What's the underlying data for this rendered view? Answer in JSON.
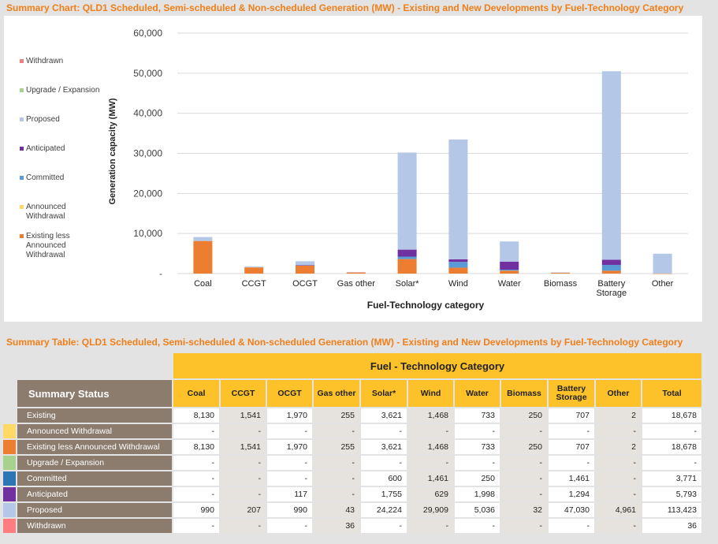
{
  "chart_title": "Summary Chart:  QLD1 Scheduled, Semi-scheduled & Non-scheduled Generation (MW) - Existing and New Developments by Fuel-Technology Category",
  "table_title": "Summary Table:  QLD1 Scheduled, Semi-scheduled & Non-scheduled Generation (MW) - Existing and New Developments by Fuel-Technology Category",
  "colors": {
    "title": "#f07f19",
    "withdrawn": "#f08080",
    "upgrade": "#a9d18e",
    "proposed": "#b4c7e7",
    "anticipated": "#7030a0",
    "committed": "#5b9bd5",
    "announced": "#ffd966",
    "existing": "#ed7d31"
  },
  "chart_data": {
    "type": "bar",
    "stacked": true,
    "title": "Summary Chart:  QLD1 Scheduled, Semi-scheduled & Non-scheduled Generation (MW) - Existing and New Developments by Fuel-Technology Category",
    "xlabel": "Fuel-Technology  category",
    "ylabel": "Generation capacity (MW)",
    "ylim": [
      0,
      60000
    ],
    "yticks": [
      "-",
      "10,000",
      "20,000",
      "30,000",
      "40,000",
      "50,000",
      "60,000"
    ],
    "categories": [
      "Coal",
      "CCGT",
      "OCGT",
      "Gas other",
      "Solar*",
      "Wind",
      "Water",
      "Biomass",
      "Battery Storage",
      "Other"
    ],
    "legend": [
      "Withdrawn",
      "Upgrade / Expansion",
      "Proposed",
      "Anticipated",
      "Committed",
      "Announced Withdrawal",
      "Existing less Announced Withdrawal"
    ],
    "series": [
      {
        "name": "Existing less Announced Withdrawal",
        "key": "existing",
        "values": [
          8130,
          1541,
          1970,
          255,
          3621,
          1468,
          733,
          250,
          707,
          2
        ]
      },
      {
        "name": "Announced Withdrawal",
        "key": "announced",
        "values": [
          0,
          0,
          0,
          0,
          0,
          0,
          0,
          0,
          0,
          0
        ]
      },
      {
        "name": "Committed",
        "key": "committed",
        "values": [
          0,
          0,
          0,
          0,
          600,
          1461,
          250,
          0,
          1461,
          0
        ]
      },
      {
        "name": "Anticipated",
        "key": "anticipated",
        "values": [
          0,
          0,
          117,
          0,
          1755,
          629,
          1998,
          0,
          1294,
          0
        ]
      },
      {
        "name": "Proposed",
        "key": "proposed",
        "values": [
          990,
          207,
          990,
          43,
          24224,
          29909,
          5036,
          32,
          47030,
          4961
        ]
      },
      {
        "name": "Upgrade / Expansion",
        "key": "upgrade",
        "values": [
          0,
          0,
          0,
          0,
          0,
          0,
          0,
          0,
          0,
          0
        ]
      },
      {
        "name": "Withdrawn",
        "key": "withdrawn",
        "values": [
          0,
          0,
          0,
          36,
          0,
          0,
          0,
          0,
          0,
          0
        ]
      }
    ]
  },
  "table": {
    "group_header": "Fuel - Technology Category",
    "status_header": "Summary Status",
    "columns": [
      "Coal",
      "CCGT",
      "OCGT",
      "Gas other",
      "Solar*",
      "Wind",
      "Water",
      "Biomass",
      "Battery Storage",
      "Other",
      "Total"
    ],
    "rows": [
      {
        "label": "Existing",
        "color": "",
        "values": [
          "8,130",
          "1,541",
          "1,970",
          "255",
          "3,621",
          "1,468",
          "733",
          "250",
          "707",
          "2",
          "18,678"
        ]
      },
      {
        "label": "Announced Withdrawal",
        "color": "#ffd966",
        "values": [
          "-",
          "-",
          "-",
          "-",
          "-",
          "-",
          "-",
          "-",
          "-",
          "-",
          "-"
        ]
      },
      {
        "label": "Existing less Announced Withdrawal",
        "color": "#ed7d31",
        "values": [
          "8,130",
          "1,541",
          "1,970",
          "255",
          "3,621",
          "1,468",
          "733",
          "250",
          "707",
          "2",
          "18,678"
        ]
      },
      {
        "label": "Upgrade / Expansion",
        "color": "#a9d18e",
        "values": [
          "-",
          "-",
          "-",
          "-",
          "-",
          "-",
          "-",
          "-",
          "-",
          "-",
          "-"
        ]
      },
      {
        "label": "Committed",
        "color": "#2e75b6",
        "values": [
          "-",
          "-",
          "-",
          "-",
          "600",
          "1,461",
          "250",
          "-",
          "1,461",
          "-",
          "3,771"
        ]
      },
      {
        "label": "Anticipated",
        "color": "#7030a0",
        "values": [
          "-",
          "-",
          "117",
          "-",
          "1,755",
          "629",
          "1,998",
          "-",
          "1,294",
          "-",
          "5,793"
        ]
      },
      {
        "label": "Proposed",
        "color": "#b4c7e7",
        "values": [
          "990",
          "207",
          "990",
          "43",
          "24,224",
          "29,909",
          "5,036",
          "32",
          "47,030",
          "4,961",
          "113,423"
        ]
      },
      {
        "label": "Withdrawn",
        "color": "#ff7c80",
        "values": [
          "-",
          "-",
          "-",
          "36",
          "-",
          "-",
          "-",
          "-",
          "-",
          "-",
          "36"
        ]
      }
    ]
  }
}
